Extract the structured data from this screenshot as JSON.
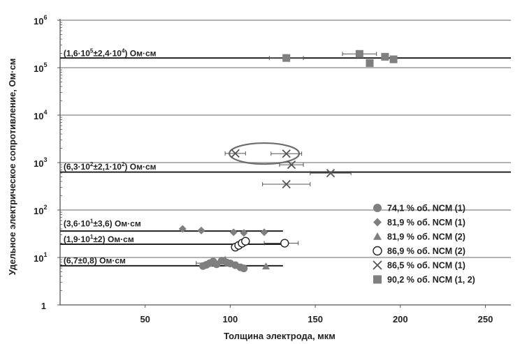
{
  "chart_data": {
    "type": "scatter",
    "xlabel": "Толщина электрода, мкм",
    "ylabel": "Удельное электрическое сопротивление, Ом·см",
    "x_ticks": [
      "50",
      "100",
      "150",
      "200",
      "250"
    ],
    "y_ticks": [
      {
        "base": "1",
        "exp": ""
      },
      {
        "base": "10",
        "exp": "1"
      },
      {
        "base": "10",
        "exp": "2"
      },
      {
        "base": "10",
        "exp": "3"
      },
      {
        "base": "10",
        "exp": "4"
      },
      {
        "base": "10",
        "exp": "5"
      },
      {
        "base": "10",
        "exp": "6"
      }
    ],
    "xlim": [
      0,
      265
    ],
    "ylim": [
      1,
      1000000
    ],
    "y_scale": "log",
    "grid": true,
    "legend_position": "bottom-right",
    "colors": {
      "gray": "#7f7f7f",
      "dark": "#222222",
      "ellipse": "#6d6d6d"
    },
    "series": [
      {
        "name": "74,1 % об. NCM (1)",
        "marker": "circle-filled",
        "points": [
          [
            84,
            6.6
          ],
          [
            86,
            7
          ],
          [
            88,
            7.6
          ],
          [
            90,
            8.2
          ],
          [
            92,
            7.2
          ],
          [
            95,
            8.5
          ],
          [
            98,
            7.8
          ],
          [
            100,
            7.5
          ],
          [
            103,
            6.9
          ],
          [
            106,
            6.2
          ],
          [
            108,
            5.9
          ]
        ]
      },
      {
        "name": "81,9 % об. NCM (1)",
        "marker": "diamond",
        "points": [
          [
            72,
            40
          ],
          [
            83,
            37
          ],
          [
            102,
            34
          ],
          [
            108,
            33
          ],
          [
            120,
            34
          ]
        ]
      },
      {
        "name": "81,9 % об. NCM (2)",
        "marker": "triangle",
        "points": [
          [
            97,
            9
          ],
          [
            121,
            6.5
          ]
        ]
      },
      {
        "name": "86,9 % об. NCM (2)",
        "marker": "circle-open",
        "points": [
          [
            103,
            16.5
          ],
          [
            105,
            18
          ],
          [
            107,
            20
          ],
          [
            109,
            22
          ],
          [
            132,
            20
          ]
        ]
      },
      {
        "name": "86,5 % об. NCM (1)",
        "marker": "cross",
        "points": [
          [
            103,
            1560
          ],
          [
            133,
            1540
          ],
          [
            136,
            900
          ],
          [
            159,
            600
          ],
          [
            133,
            350
          ]
        ]
      },
      {
        "name": "90,2 % об. NCM (1, 2)",
        "marker": "square",
        "points": [
          [
            133,
            160000
          ],
          [
            176,
            195000
          ],
          [
            182,
            125000
          ],
          [
            191,
            170000
          ],
          [
            196,
            150000
          ]
        ]
      }
    ],
    "fit_lines": [
      {
        "label": "(1,6·10^5±2,4·10^4) Ом·см",
        "value": 160000,
        "label_x": 2,
        "label_y": 200000
      },
      {
        "label": "(6,3·10^2±2,1·10^2) Ом·см",
        "value": 630,
        "label_x": 2,
        "label_y": 820
      },
      {
        "label": "(3,6·10^1±3,6) Ом·см",
        "value": 36,
        "label_x": 2,
        "label_y": 52
      },
      {
        "label": "(1,9·10^1±2) Ом·см",
        "value": 19,
        "label_x": 2,
        "label_y": 24
      },
      {
        "label": "(6,7±0,8) Ом·см",
        "value": 6.7,
        "label_x": 2,
        "label_y": 8.6
      }
    ],
    "fit_label_parts": [
      {
        "pre": "(1,6·10",
        "exp1": "5",
        "mid": "±2,4·10",
        "exp2": "4",
        "post": ") Ом·см"
      },
      {
        "pre": "(6,3·10",
        "exp1": "2",
        "mid": "±2,1·10",
        "exp2": "2",
        "post": ") Ом·см"
      },
      {
        "pre": "(3,6·10",
        "exp1": "1",
        "mid": "±3,6",
        "exp2": "",
        "post": ") Ом·см"
      },
      {
        "pre": "(1,9·10",
        "exp1": "1",
        "mid": "±2",
        "exp2": "",
        "post": ") Ом·см"
      },
      {
        "pre": "(6,7±0,8",
        "exp1": "",
        "mid": "",
        "exp2": "",
        "post": ") Ом·см"
      }
    ]
  }
}
